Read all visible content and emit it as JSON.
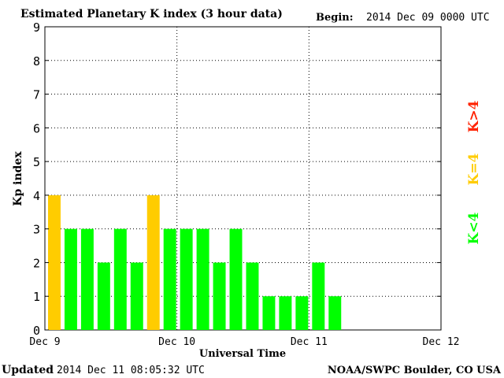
{
  "header": {
    "title": "Estimated Planetary K index (3 hour data)",
    "begin_label": "Begin:",
    "begin_value": "2014 Dec 09 0000 UTC"
  },
  "footer": {
    "updated_label": "Updated",
    "updated_value": "2014 Dec 11 08:05:32 UTC",
    "source": "NOAA/SWPC Boulder, CO USA"
  },
  "legend": {
    "items": [
      {
        "label": "K<4",
        "color": "#00ff00"
      },
      {
        "label": "K=4",
        "color": "#ffcc00"
      },
      {
        "label": "K>4",
        "color": "#ff2200"
      }
    ]
  },
  "chart_data": {
    "type": "bar",
    "ylabel": "Kp index",
    "xlabel": "Universal Time",
    "ylim": [
      0,
      9
    ],
    "yticks": [
      "0",
      "1",
      "2",
      "3",
      "4",
      "5",
      "6",
      "7",
      "8",
      "9"
    ],
    "x_tick_labels": [
      "Dec 9",
      "Dec 10",
      "Dec 11",
      "Dec 12"
    ],
    "grid": "dotted",
    "legend_placement": "right",
    "values": [
      4,
      3,
      3,
      2,
      3,
      2,
      4,
      3,
      3,
      3,
      2,
      3,
      2,
      1,
      1,
      1,
      2,
      1
    ],
    "colors": {
      "below4": "#00ff00",
      "equal4": "#ffcc00",
      "above4": "#ff2200"
    }
  }
}
